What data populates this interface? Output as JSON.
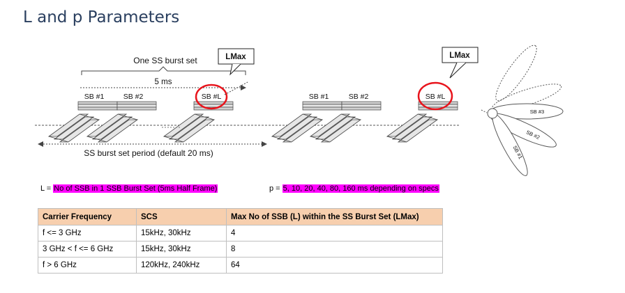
{
  "title": "L and p Parameters",
  "diagram": {
    "burst_set_label": "One SS burst set",
    "lmax_callout_1": "LMax",
    "lmax_callout_2": "LMax",
    "ms5_label": "5 ms",
    "sb1": "SB #1",
    "sb2": "SB #2",
    "sbl": "SB #L",
    "sb1_b": "SB #1",
    "sb2_b": "SB #2",
    "sbl_b": "SB #L",
    "period_label": "SS burst set period (default 20 ms)",
    "beam_sb3": "SB #3",
    "beam_sb2": "SB #2",
    "beam_sb1": "SB #1",
    "colors": {
      "highlight": "#ff00ff",
      "circle": "#e8141c",
      "table_header": "#f7cfae"
    }
  },
  "L_def": {
    "prefix": "L = ",
    "text": "No of SSB in 1 SSB Burst Set (5ms Half Frame)"
  },
  "p_def": {
    "prefix": "p = ",
    "text": "5, 10, 20, 40, 80, 160 ms depending on specs"
  },
  "table": {
    "headers": [
      "Carrier Frequency",
      "SCS",
      "Max No of SSB (L) within the SS Burst Set (LMax)"
    ],
    "rows": [
      [
        "f <= 3 GHz",
        "15kHz, 30kHz",
        "4"
      ],
      [
        "3 GHz < f <= 6 GHz",
        "15kHz, 30kHz",
        "8"
      ],
      [
        "f > 6 GHz",
        "120kHz, 240kHz",
        "64"
      ]
    ]
  }
}
